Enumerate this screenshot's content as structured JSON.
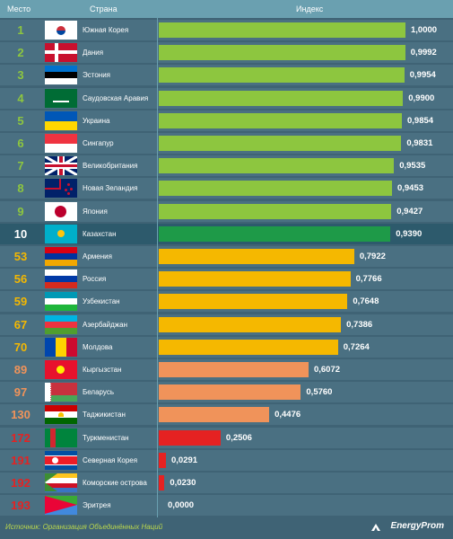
{
  "header": {
    "rank_label": "Место",
    "country_label": "Страна",
    "index_label": "Индекс"
  },
  "colors": {
    "top": "#8dc63f",
    "highlight": "#1e9a48",
    "mid": "#f5b800",
    "low": "#f0935a",
    "bottom": "#e52222"
  },
  "chart_data": {
    "type": "bar",
    "xlim": [
      0,
      1
    ],
    "categories": [
      "Южная Корея",
      "Дания",
      "Эстония",
      "Саудовская Аравия",
      "Украина",
      "Сингапур",
      "Великобритания",
      "Новая Зеландия",
      "Япония",
      "Казахстан",
      "Армения",
      "Россия",
      "Узбекистан",
      "Азербайджан",
      "Молдова",
      "Кыргызстан",
      "Беларусь",
      "Таджикистан",
      "Туркменистан",
      "Северная Корея",
      "Коморские острова",
      "Эритрея"
    ],
    "ranks": [
      "1",
      "2",
      "3",
      "4",
      "5",
      "6",
      "7",
      "8",
      "9",
      "10",
      "53",
      "56",
      "59",
      "67",
      "70",
      "89",
      "97",
      "130",
      "172",
      "191",
      "192",
      "193"
    ],
    "values": [
      1.0,
      0.9992,
      0.9954,
      0.99,
      0.9854,
      0.9831,
      0.9535,
      0.9453,
      0.9427,
      0.939,
      0.7922,
      0.7766,
      0.7648,
      0.7386,
      0.7264,
      0.6072,
      0.576,
      0.4476,
      0.2506,
      0.0291,
      0.023,
      0.0
    ],
    "value_labels": [
      "1,0000",
      "0,9992",
      "0,9954",
      "0,9900",
      "0,9854",
      "0,9831",
      "0,9535",
      "0,9453",
      "0,9427",
      "0,9390",
      "0,7922",
      "0,7766",
      "0,7648",
      "0,7386",
      "0,7264",
      "0,6072",
      "0,5760",
      "0,4476",
      "0,2506",
      "0,0291",
      "0,0230",
      "0,0000"
    ],
    "groups": [
      "top",
      "top",
      "top",
      "top",
      "top",
      "top",
      "top",
      "top",
      "top",
      "highlight",
      "mid",
      "mid",
      "mid",
      "mid",
      "mid",
      "low",
      "low",
      "low",
      "bottom",
      "bottom",
      "bottom",
      "bottom"
    ],
    "flags": [
      "south-korea-flag-icon",
      "denmark-flag-icon",
      "estonia-flag-icon",
      "saudi-arabia-flag-icon",
      "ukraine-flag-icon",
      "singapore-flag-icon",
      "uk-flag-icon",
      "new-zealand-flag-icon",
      "japan-flag-icon",
      "kazakhstan-flag-icon",
      "armenia-flag-icon",
      "russia-flag-icon",
      "uzbekistan-flag-icon",
      "azerbaijan-flag-icon",
      "moldova-flag-icon",
      "kyrgyzstan-flag-icon",
      "belarus-flag-icon",
      "tajikistan-flag-icon",
      "turkmenistan-flag-icon",
      "north-korea-flag-icon",
      "comoros-flag-icon",
      "eritrea-flag-icon"
    ]
  },
  "footer": {
    "source": "Источник: Организация Объединённых Наций",
    "logo": "EnergyProm"
  }
}
